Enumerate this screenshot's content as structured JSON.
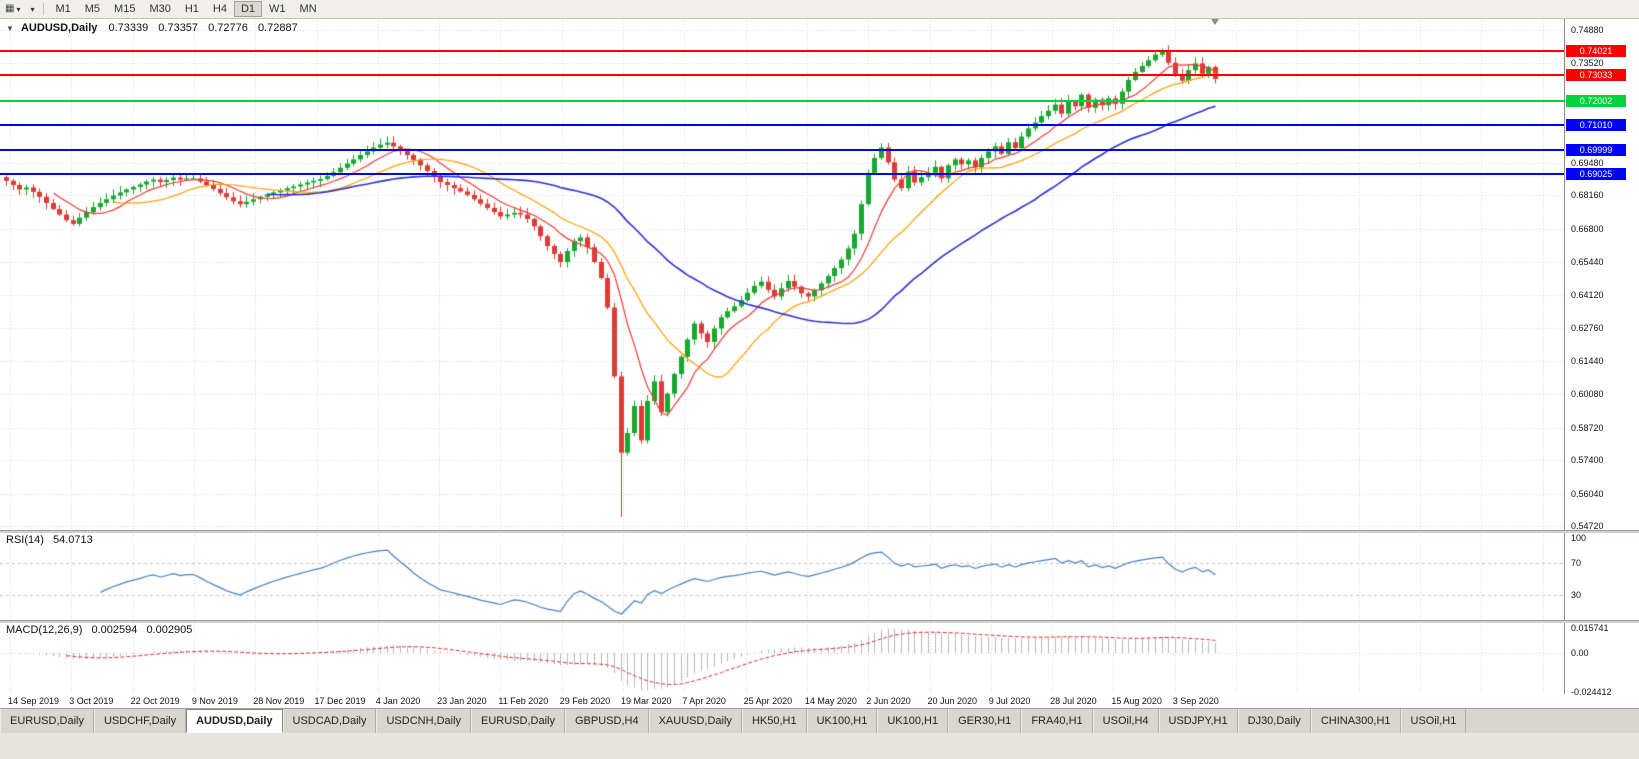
{
  "toolbar": {
    "icons": [
      {
        "name": "chart-window-icon",
        "glyph": "▦"
      },
      {
        "name": "chevron-down-icon",
        "glyph": "▾"
      }
    ],
    "timeframes": [
      {
        "label": "M1",
        "active": false
      },
      {
        "label": "M5",
        "active": false
      },
      {
        "label": "M15",
        "active": false
      },
      {
        "label": "M30",
        "active": false
      },
      {
        "label": "H1",
        "active": false
      },
      {
        "label": "H4",
        "active": false
      },
      {
        "label": "D1",
        "active": true
      },
      {
        "label": "W1",
        "active": false
      },
      {
        "label": "MN",
        "active": false
      }
    ]
  },
  "chart": {
    "title": {
      "collapse_glyph": "▼",
      "symbol": "AUDUSD,Daily",
      "open": "0.73339",
      "high": "0.73357",
      "low": "0.72776",
      "close": "0.72887"
    },
    "colors": {
      "up": "#17a82e",
      "down": "#dd3b36",
      "grid": "#d6d6d6"
    },
    "price_axis": {
      "labels": [
        "0.74880",
        "0.73520",
        "0.69480",
        "0.68160",
        "0.66800",
        "0.65440",
        "0.64120",
        "0.62760",
        "0.61440",
        "0.60080",
        "0.58720",
        "0.57400",
        "0.56040",
        "0.54720"
      ]
    },
    "hlines": [
      {
        "name": "resistance-1",
        "label": "0.74021",
        "price": 0.74021,
        "color": "#ff0000"
      },
      {
        "name": "resistance-2",
        "label": "0.73033",
        "price": 0.73033,
        "color": "#ff0000"
      },
      {
        "name": "level-green",
        "label": "0.72002",
        "price": 0.72002,
        "color": "#00d23c"
      },
      {
        "name": "support-1",
        "label": "0.71010",
        "price": 0.7101,
        "color": "#0000ff"
      },
      {
        "name": "support-2",
        "label": "0.69999",
        "price": 0.69999,
        "color": "#0000ff"
      },
      {
        "name": "support-3",
        "label": "0.69025",
        "price": 0.69025,
        "color": "#0000ff"
      }
    ],
    "date_labels": [
      "14 Sep 2019",
      "3 Oct 2019",
      "22 Oct 2019",
      "9 Nov 2019",
      "28 Nov 2019",
      "17 Dec 2019",
      "4 Jan 2020",
      "23 Jan 2020",
      "11 Feb 2020",
      "29 Feb 2020",
      "19 Mar 2020",
      "7 Apr 2020",
      "25 Apr 2020",
      "14 May 2020",
      "2 Jun 2020",
      "20 Jun 2020",
      "9 Jul 2020",
      "28 Jul 2020",
      "15 Aug 2020",
      "3 Sep 2020"
    ]
  },
  "rsi": {
    "label": "RSI(14)",
    "value": "54.0713",
    "period": 14,
    "color": "#4a7fc1",
    "levels": [
      70,
      30
    ],
    "axis_labels": [
      {
        "text": "100",
        "level": 100
      },
      {
        "text": "70",
        "level": 70
      },
      {
        "text": "30",
        "level": 30
      }
    ]
  },
  "macd": {
    "label": "MACD(12,26,9)",
    "value_main": "0.002594",
    "value_signal": "0.002905",
    "fast": 12,
    "slow": 26,
    "signal": 9,
    "histogram_color": "#b8b8b8",
    "signal_color": "#e03030",
    "axis_labels": [
      {
        "text": "0.015741",
        "v": 0.015741
      },
      {
        "text": "0.00",
        "v": 0
      },
      {
        "text": "-0.024412",
        "v": -0.024412
      }
    ]
  },
  "tabs": [
    {
      "label": "EURUSD,Daily",
      "active": false
    },
    {
      "label": "USDCHF,Daily",
      "active": false
    },
    {
      "label": "AUDUSD,Daily",
      "active": true
    },
    {
      "label": "USDCAD,Daily",
      "active": false
    },
    {
      "label": "USDCNH,Daily",
      "active": false
    },
    {
      "label": "EURUSD,Daily",
      "active": false
    },
    {
      "label": "GBPUSD,H4",
      "active": false
    },
    {
      "label": "XAUUSD,Daily",
      "active": false
    },
    {
      "label": "HK50,H1",
      "active": false
    },
    {
      "label": "UK100,H1",
      "active": false
    },
    {
      "label": "UK100,H1",
      "active": false
    },
    {
      "label": "GER30,H1",
      "active": false
    },
    {
      "label": "FRA40,H1",
      "active": false
    },
    {
      "label": "USOil,H4",
      "active": false
    },
    {
      "label": "USDJPY,H1",
      "active": false
    },
    {
      "label": "DJ30,Daily",
      "active": false
    },
    {
      "label": "CHINA300,H1",
      "active": false
    },
    {
      "label": "USOil,H1",
      "active": false
    }
  ],
  "chart_data": {
    "type": "candlestick",
    "symbol": "AUDUSD",
    "period": "Daily",
    "y_axis": {
      "min": 0.5472,
      "max": 0.7488
    },
    "first_open": 0.689,
    "extreme_low_index": 92,
    "extreme_low": 0.551,
    "extreme_high_index": 173,
    "extreme_high": 0.7413,
    "moving_averages": [
      {
        "period": 8,
        "color": "#f23a3a",
        "width": 1.2
      },
      {
        "period": 17,
        "color": "#ff9e00",
        "width": 1.2
      },
      {
        "period": 40,
        "color": "#2d31d0",
        "width": 1.6
      }
    ],
    "closes": [
      0.6875,
      0.6858,
      0.684,
      0.6848,
      0.683,
      0.681,
      0.6785,
      0.676,
      0.6738,
      0.6715,
      0.67,
      0.6725,
      0.6748,
      0.6768,
      0.6785,
      0.68,
      0.6815,
      0.6828,
      0.684,
      0.685,
      0.686,
      0.6872,
      0.688,
      0.687,
      0.6878,
      0.6888,
      0.688,
      0.6885,
      0.6885,
      0.6872,
      0.6858,
      0.6842,
      0.6825,
      0.6808,
      0.6792,
      0.678,
      0.679,
      0.68,
      0.681,
      0.682,
      0.6828,
      0.6836,
      0.6845,
      0.6852,
      0.686,
      0.6868,
      0.6875,
      0.6882,
      0.6895,
      0.691,
      0.6928,
      0.6945,
      0.6962,
      0.698,
      0.6995,
      0.701,
      0.7022,
      0.703,
      0.7015,
      0.6998,
      0.698,
      0.696,
      0.6938,
      0.6915,
      0.6892,
      0.687,
      0.6858,
      0.6845,
      0.6832,
      0.6818,
      0.68,
      0.6782,
      0.6765,
      0.6748,
      0.673,
      0.6738,
      0.6745,
      0.6738,
      0.672,
      0.669,
      0.665,
      0.661,
      0.6578,
      0.6545,
      0.659,
      0.663,
      0.6645,
      0.6605,
      0.6545,
      0.648,
      0.636,
      0.608,
      0.577,
      0.585,
      0.596,
      0.582,
      0.598,
      0.606,
      0.5935,
      0.601,
      0.609,
      0.616,
      0.623,
      0.6295,
      0.6255,
      0.622,
      0.6275,
      0.632,
      0.6345,
      0.6365,
      0.639,
      0.642,
      0.6448,
      0.6465,
      0.6432,
      0.6405,
      0.6438,
      0.6468,
      0.6445,
      0.6418,
      0.6405,
      0.643,
      0.6458,
      0.6488,
      0.652,
      0.6555,
      0.66,
      0.666,
      0.678,
      0.6905,
      0.6968,
      0.701,
      0.695,
      0.688,
      0.6845,
      0.6912,
      0.6868,
      0.689,
      0.6905,
      0.6932,
      0.6885,
      0.6938,
      0.6962,
      0.6942,
      0.6958,
      0.693,
      0.6968,
      0.6995,
      0.7015,
      0.6985,
      0.7032,
      0.7008,
      0.7055,
      0.7088,
      0.7112,
      0.7138,
      0.716,
      0.7185,
      0.7148,
      0.7198,
      0.7178,
      0.7225,
      0.7172,
      0.7205,
      0.7182,
      0.721,
      0.7188,
      0.7238,
      0.7285,
      0.7318,
      0.7342,
      0.7365,
      0.7388,
      0.7405,
      0.7355,
      0.7308,
      0.7282,
      0.7325,
      0.7352,
      0.731,
      0.7338,
      0.7289
    ]
  }
}
